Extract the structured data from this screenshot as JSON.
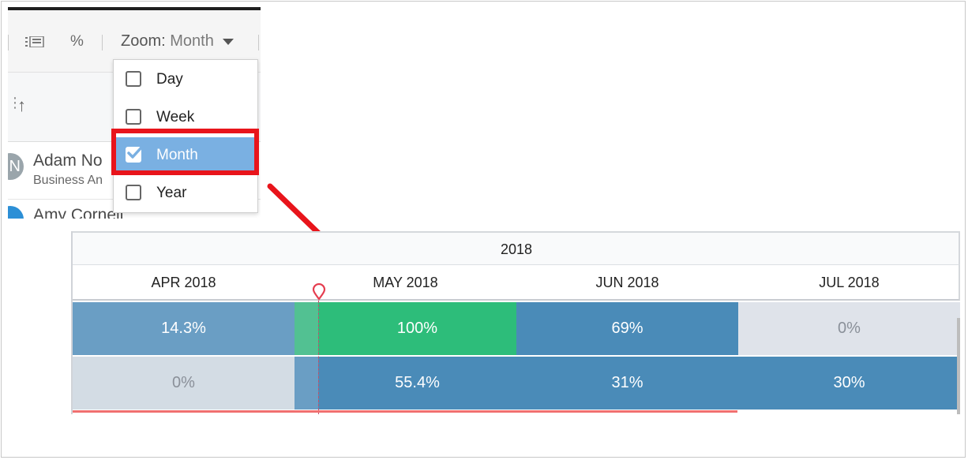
{
  "toolbar": {
    "percent_label": "%",
    "zoom_label": "Zoom:",
    "zoom_value": "Month"
  },
  "zoom_menu": {
    "items": [
      {
        "label": "Day",
        "checked": false
      },
      {
        "label": "Week",
        "checked": false
      },
      {
        "label": "Month",
        "checked": true
      },
      {
        "label": "Year",
        "checked": false
      }
    ]
  },
  "people": [
    {
      "name": "Adam No",
      "role": "Business An",
      "avatar_letter": "N"
    },
    {
      "name": "Amy Corneil",
      "role": "",
      "avatar_letter": ""
    }
  ],
  "gantt": {
    "year": "2018",
    "months": [
      "APR 2018",
      "MAY 2018",
      "JUN 2018",
      "JUL 2018"
    ],
    "rows": [
      [
        "14.3%",
        "100%",
        "69%",
        "0%"
      ],
      [
        "0%",
        "55.4%",
        "31%",
        "30%"
      ]
    ]
  },
  "colors": {
    "highlight": "#e8141b",
    "menu_selected": "#7ab0e2",
    "complete_green": "#2dbd7a",
    "bar_blue": "#4a8bb8",
    "bar_light_blue": "#6a9ec4",
    "empty_gray": "#dfe3ea"
  }
}
